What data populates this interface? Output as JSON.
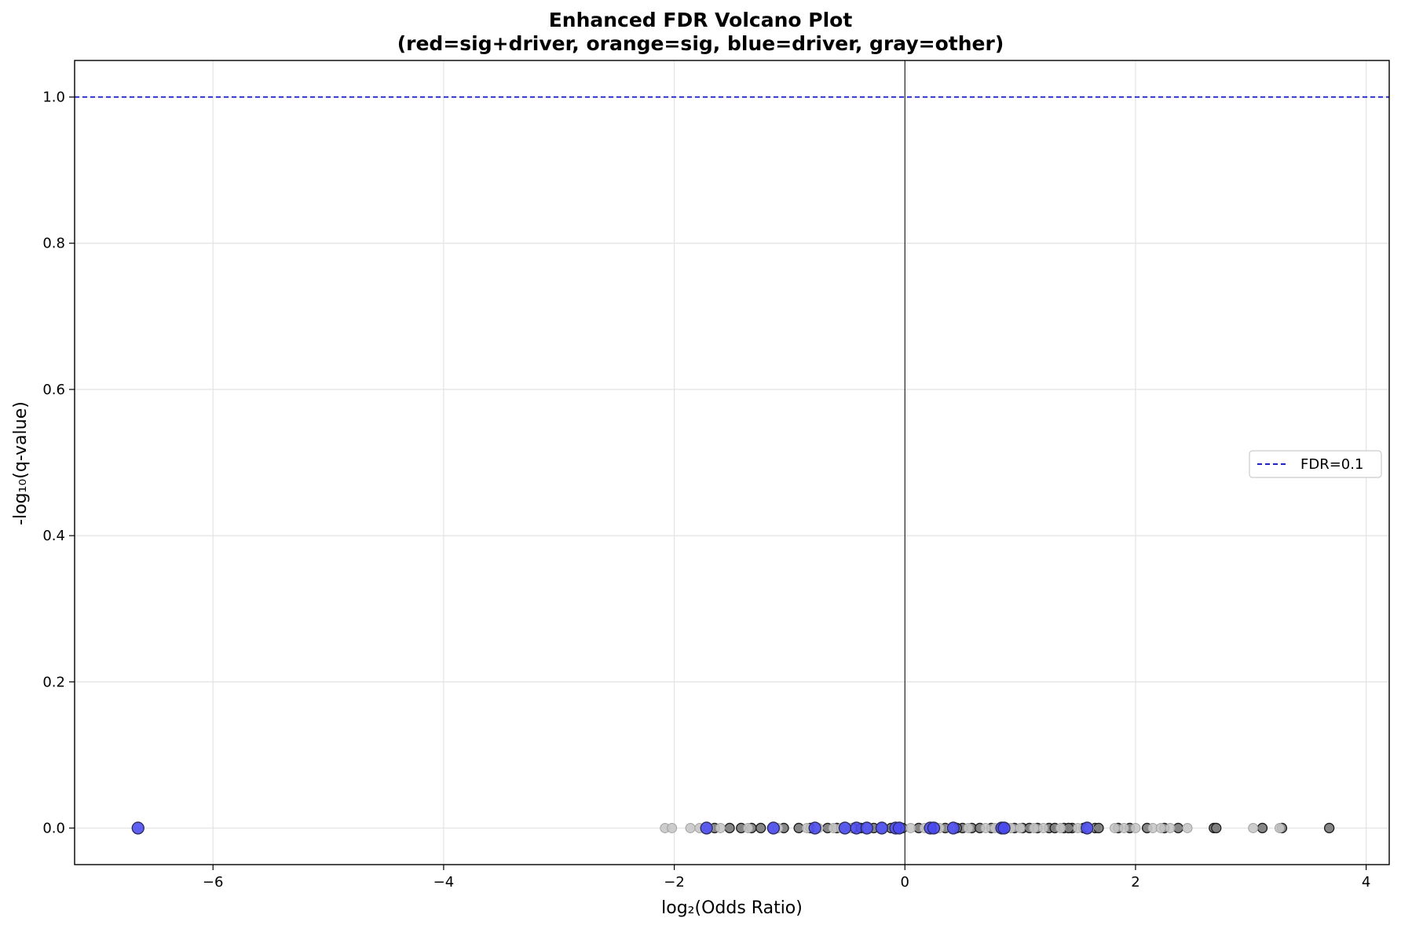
{
  "chart_data": {
    "type": "scatter",
    "title": "Enhanced FDR Volcano Plot",
    "subtitle": "(red=sig+driver, orange=sig, blue=driver, gray=other)",
    "xlabel": "log₂(Odds Ratio)",
    "ylabel": "-log₁₀(q-value)",
    "xlim": [
      -7.2,
      4.2
    ],
    "ylim": [
      -0.05,
      1.05
    ],
    "xticks": [
      -6,
      -4,
      -2,
      0,
      2,
      4
    ],
    "yticks": [
      0.0,
      0.2,
      0.4,
      0.6,
      0.8,
      1.0
    ],
    "xtick_labels": [
      "−6",
      "−4",
      "−2",
      "0",
      "2",
      "4"
    ],
    "ytick_labels": [
      "0.0",
      "0.2",
      "0.4",
      "0.6",
      "0.8",
      "1.0"
    ],
    "grid": true,
    "legend": {
      "position": "center-right",
      "entries": [
        {
          "label": "FDR=0.1",
          "color": "#0000cc",
          "style": "dashed"
        }
      ]
    },
    "reference_lines": [
      {
        "orientation": "horizontal",
        "y": 1.0,
        "color": "#0000cc",
        "style": "dashed",
        "label": "FDR=0.1"
      },
      {
        "orientation": "vertical",
        "x": 0,
        "color": "#000000",
        "style": "solid"
      }
    ],
    "colors": {
      "driver": "#4a4af0",
      "other": "#808080",
      "other_light": "#c8c8c8",
      "sig": "#ff8c00",
      "sig_driver": "#e00000"
    },
    "series": [
      {
        "name": "gray=other",
        "category": "other",
        "x": [
          -1.65,
          -1.52,
          -1.42,
          -1.33,
          -1.25,
          -1.05,
          -0.92,
          -0.67,
          -0.59,
          -0.45,
          -0.38,
          -0.27,
          -0.12,
          -0.02,
          0.12,
          0.27,
          0.35,
          0.5,
          0.58,
          0.65,
          0.75,
          0.88,
          0.95,
          1.02,
          1.08,
          1.15,
          1.25,
          1.3,
          1.38,
          1.45,
          1.55,
          1.65,
          1.68,
          1.85,
          1.95,
          2.1,
          2.25,
          2.37,
          2.68,
          3.1,
          3.27,
          3.68,
          2.7,
          1.42,
          0.82,
          0.45,
          -0.82
        ],
        "y": [
          0,
          0,
          0,
          0,
          0,
          0,
          0,
          0,
          0,
          0,
          0,
          0,
          0,
          0,
          0,
          0,
          0,
          0,
          0,
          0,
          0,
          0,
          0,
          0,
          0,
          0,
          0,
          0,
          0,
          0,
          0,
          0,
          0,
          0,
          0,
          0,
          0,
          0,
          0,
          0,
          0,
          0,
          0,
          0,
          0,
          0,
          0
        ]
      },
      {
        "name": "gray=other (light)",
        "category": "other_light",
        "x": [
          -2.08,
          -2.02,
          -1.86,
          -1.78,
          -1.7,
          -1.6,
          -1.36,
          -1.15,
          -1.1,
          -0.85,
          -0.75,
          -0.62,
          -0.55,
          -0.47,
          -0.32,
          -0.2,
          -0.08,
          0.05,
          0.17,
          0.3,
          0.4,
          0.55,
          0.7,
          0.78,
          0.92,
          1.0,
          1.12,
          1.2,
          1.35,
          1.5,
          1.6,
          1.82,
          1.9,
          2.0,
          2.15,
          2.22,
          2.3,
          2.45,
          3.02,
          3.25
        ],
        "y": [
          0,
          0,
          0,
          0,
          0,
          0,
          0,
          0,
          0,
          0,
          0,
          0,
          0,
          0,
          0,
          0,
          0,
          0,
          0,
          0,
          0,
          0,
          0,
          0,
          0,
          0,
          0,
          0,
          0,
          0,
          0,
          0,
          0,
          0,
          0,
          0,
          0,
          0,
          0,
          0
        ]
      },
      {
        "name": "blue=driver",
        "category": "driver",
        "x": [
          -6.65,
          -1.72,
          -1.14,
          -0.78,
          -0.52,
          -0.42,
          -0.33,
          -0.2,
          -0.08,
          -0.05,
          0.22,
          0.25,
          0.42,
          0.84,
          0.86,
          1.58
        ],
        "y": [
          0,
          0,
          0,
          0,
          0,
          0,
          0,
          0,
          0,
          0,
          0,
          0,
          0,
          0,
          0,
          0
        ]
      }
    ]
  }
}
